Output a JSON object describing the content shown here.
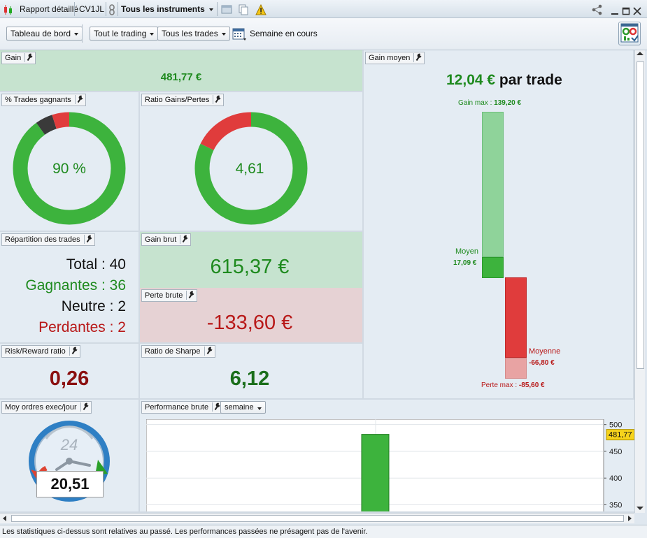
{
  "titlebar": {
    "report_label": "Rapport détaillé",
    "account_label": "CV1JL",
    "instruments_label": "Tous les instruments"
  },
  "toolbar": {
    "dashboard_label": "Tableau de bord",
    "trading_label": "Tout le trading",
    "trades_label": "Tous les trades",
    "period_label": "Semaine en cours"
  },
  "panels": {
    "gain": {
      "title": "Gain",
      "value": "481,77 €"
    },
    "win_pct": {
      "title": "% Trades gagnants",
      "value": "90 %",
      "win_fraction": 0.9,
      "neutral_fraction": 0.05,
      "loss_fraction": 0.05
    },
    "ratio": {
      "title": "Ratio Gains/Pertes",
      "value": "4,61",
      "win_fraction": 0.822,
      "loss_fraction": 0.178
    },
    "avg_gain": {
      "title": "Gain moyen",
      "value": "12,04 €",
      "suffix": " par trade",
      "max_gain_label": "Gain max :",
      "max_gain_value": "139,20 €",
      "avg_win_label": "Moyen",
      "avg_win_value": "17,09 €",
      "avg_loss_label": "Moyenne",
      "avg_loss_value": "-66,80 €",
      "max_loss_label": "Perte max :",
      "max_loss_value": "-85,60 €"
    },
    "distribution": {
      "title": "Répartition des trades",
      "total": "Total : 40",
      "winners": "Gagnantes : 36",
      "neutral": "Neutre : 2",
      "losers": "Perdantes : 2"
    },
    "gross_gain": {
      "title": "Gain brut",
      "value": "615,37 €"
    },
    "gross_loss": {
      "title": "Perte brute",
      "value": "-133,60 €"
    },
    "risk_reward": {
      "title": "Risk/Reward ratio",
      "value": "0,26"
    },
    "sharpe": {
      "title": "Ratio de Sharpe",
      "value": "6,12"
    },
    "orders": {
      "title": "Moy ordres exec/jour",
      "clock_label": "24",
      "value": "20,51"
    },
    "performance": {
      "title": "Performance brute",
      "period": "semaine"
    }
  },
  "chart_data": {
    "type": "bar",
    "categories": [
      ""
    ],
    "values": [
      481.77
    ],
    "yticks": [
      "500",
      "450",
      "400",
      "350"
    ],
    "ylim": [
      335,
      510
    ],
    "last_value_label": "481,77"
  },
  "colors": {
    "win": "#3db33d",
    "loss": "#e03c3c",
    "neutral": "#3a3a3a",
    "gain_bg": "#c6e3cf",
    "loss_bg": "#e6d2d4"
  },
  "statusbar": {
    "text": "Les statistiques ci-dessus sont relatives au passé. Les performances passées ne présagent pas de l'avenir."
  }
}
